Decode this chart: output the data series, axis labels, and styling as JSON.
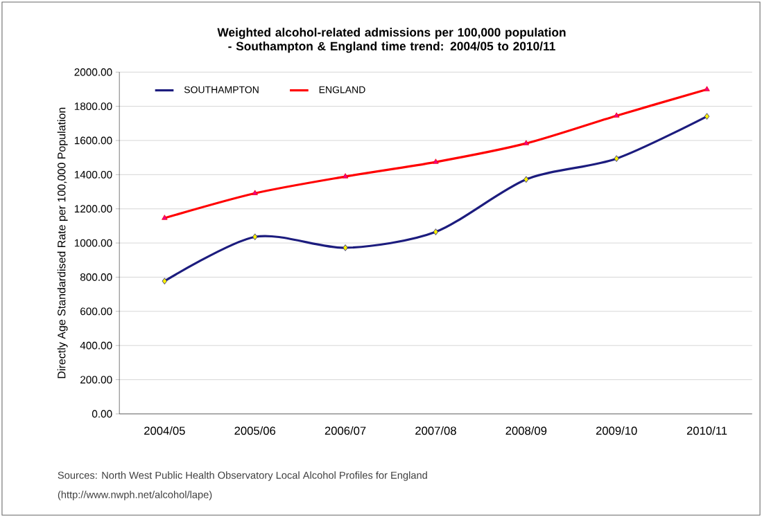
{
  "chart_data": {
    "type": "line",
    "title": "Weighted alcohol-related admissions per 100,000 population - Southampton & England time trend: 2004/05 to 2010/11",
    "ylabel": "Directly Age Standardised Rate per 100,000 Population",
    "categories": [
      "2004/05",
      "2005/06",
      "2006/07",
      "2007/08",
      "2008/09",
      "2009/10",
      "2010/11"
    ],
    "series": [
      {
        "name": "SOUTHAMPTON",
        "color": "#1c1c7e",
        "marker": "diamond",
        "values": [
          777,
          1036,
          972,
          1065,
          1372,
          1494,
          1741
        ]
      },
      {
        "name": "ENGLAND",
        "color": "#ff0000",
        "marker": "triangle",
        "values": [
          1146,
          1291,
          1389,
          1474,
          1583,
          1745,
          1899
        ]
      }
    ],
    "ylim": [
      0,
      2000
    ],
    "yticks": [
      {
        "value": 0,
        "label": "0.00"
      },
      {
        "value": 200,
        "label": "200.00"
      },
      {
        "value": 400,
        "label": "400.00"
      },
      {
        "value": 600,
        "label": "600.00"
      },
      {
        "value": 800,
        "label": "800.00"
      },
      {
        "value": 1000,
        "label": "1000.00"
      },
      {
        "value": 1200,
        "label": "1200.00"
      },
      {
        "value": 1400,
        "label": "1400.00"
      },
      {
        "value": 1600,
        "label": "1600.00"
      },
      {
        "value": 1800,
        "label": "1800.00"
      },
      {
        "value": 2000,
        "label": "2000.00"
      }
    ],
    "grid": "y",
    "legend": "top left",
    "line_style": "solid",
    "annotations": [
      "Sources: North West Public Health Observatory Local Alcohol Profiles for England",
      "(http://www.nwph.net/alcohol/lape)"
    ]
  }
}
